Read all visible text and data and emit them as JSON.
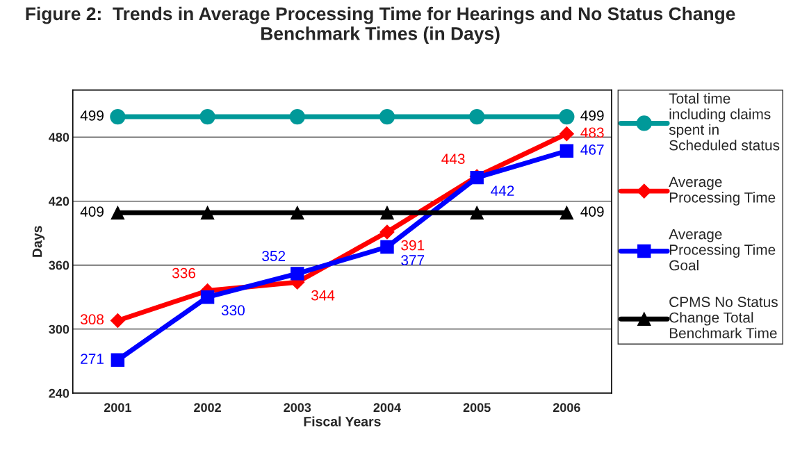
{
  "chart_data": {
    "type": "line",
    "title": "Figure 2:  Trends in Average Processing Time for Hearings and No Status Change Benchmark Times (in Days)",
    "xlabel": "Fiscal Years",
    "ylabel": "Days",
    "categories": [
      "2001",
      "2002",
      "2003",
      "2004",
      "2005",
      "2006"
    ],
    "ylim": [
      240,
      524
    ],
    "yticks": [
      240,
      300,
      360,
      420,
      480
    ],
    "grid": "y",
    "legend": "right",
    "series": [
      {
        "name": "Total time including claims spent in Scheduled status",
        "color": "#009999",
        "marker": "circle",
        "values": [
          499,
          499,
          499,
          499,
          499,
          499
        ],
        "value_labels": [
          "499",
          null,
          null,
          null,
          null,
          "499"
        ]
      },
      {
        "name": "Average Processing Time",
        "color": "#ff0000",
        "marker": "diamond",
        "values": [
          308,
          336,
          344,
          391,
          443,
          483
        ],
        "value_labels": [
          "308",
          "336",
          "344",
          "391",
          "443",
          "483"
        ]
      },
      {
        "name": "Average Processing Time Goal",
        "color": "#0000ff",
        "marker": "square",
        "values": [
          271,
          330,
          352,
          377,
          442,
          467
        ],
        "value_labels": [
          "271",
          "330",
          "352",
          "377",
          "442",
          "467"
        ]
      },
      {
        "name": "CPMS No Status Change Total Benchmark Time",
        "color": "#000000",
        "marker": "triangle",
        "values": [
          409,
          409,
          409,
          409,
          409,
          409
        ],
        "value_labels": [
          "409",
          null,
          null,
          null,
          null,
          "409"
        ]
      }
    ]
  }
}
